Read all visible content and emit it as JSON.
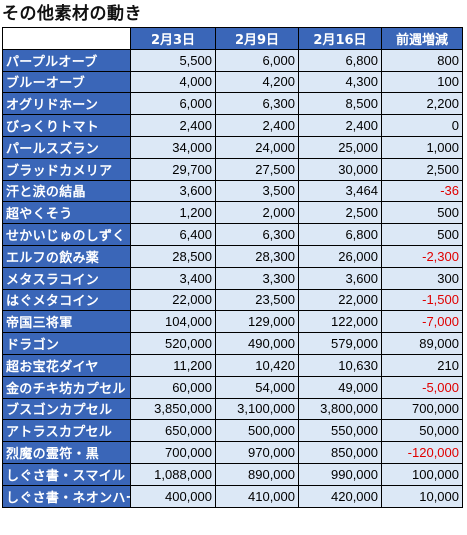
{
  "title": "その他素材の動き",
  "headers": [
    "2月3日",
    "2月9日",
    "2月16日",
    "前週増減"
  ],
  "rows": [
    {
      "name": "パープルオーブ",
      "v1": "5,500",
      "v2": "6,000",
      "v3": "6,800",
      "diff": "800"
    },
    {
      "name": "ブルーオーブ",
      "v1": "4,000",
      "v2": "4,200",
      "v3": "4,300",
      "diff": "100"
    },
    {
      "name": "オグリドホーン",
      "v1": "6,000",
      "v2": "6,300",
      "v3": "8,500",
      "diff": "2,200"
    },
    {
      "name": "びっくりトマト",
      "v1": "2,400",
      "v2": "2,400",
      "v3": "2,400",
      "diff": "0"
    },
    {
      "name": "パールスズラン",
      "v1": "34,000",
      "v2": "24,000",
      "v3": "25,000",
      "diff": "1,000"
    },
    {
      "name": "ブラッドカメリア",
      "v1": "29,700",
      "v2": "27,500",
      "v3": "30,000",
      "diff": "2,500"
    },
    {
      "name": "汗と涙の結晶",
      "v1": "3,600",
      "v2": "3,500",
      "v3": "3,464",
      "diff": "-36"
    },
    {
      "name": "超やくそう",
      "v1": "1,200",
      "v2": "2,000",
      "v3": "2,500",
      "diff": "500"
    },
    {
      "name": "せかいじゅのしずく",
      "v1": "6,400",
      "v2": "6,300",
      "v3": "6,800",
      "diff": "500"
    },
    {
      "name": "エルフの飲み薬",
      "v1": "28,500",
      "v2": "28,300",
      "v3": "26,000",
      "diff": "-2,300"
    },
    {
      "name": "メタスラコイン",
      "v1": "3,400",
      "v2": "3,300",
      "v3": "3,600",
      "diff": "300"
    },
    {
      "name": "はぐメタコイン",
      "v1": "22,000",
      "v2": "23,500",
      "v3": "22,000",
      "diff": "-1,500"
    },
    {
      "name": "帝国三将軍",
      "v1": "104,000",
      "v2": "129,000",
      "v3": "122,000",
      "diff": "-7,000"
    },
    {
      "name": "ドラゴン",
      "v1": "520,000",
      "v2": "490,000",
      "v3": "579,000",
      "diff": "89,000"
    },
    {
      "name": "超お宝花ダイヤ",
      "v1": "11,200",
      "v2": "10,420",
      "v3": "10,630",
      "diff": "210"
    },
    {
      "name": "金のチキ坊カプセル",
      "v1": "60,000",
      "v2": "54,000",
      "v3": "49,000",
      "diff": "-5,000"
    },
    {
      "name": "ブスゴンカプセル",
      "v1": "3,850,000",
      "v2": "3,100,000",
      "v3": "3,800,000",
      "diff": "700,000"
    },
    {
      "name": "アトラスカプセル",
      "v1": "650,000",
      "v2": "500,000",
      "v3": "550,000",
      "diff": "50,000"
    },
    {
      "name": "烈魔の霊符・黒",
      "v1": "700,000",
      "v2": "970,000",
      "v3": "850,000",
      "diff": "-120,000"
    },
    {
      "name": "しぐさ書・スマイル",
      "v1": "1,088,000",
      "v2": "890,000",
      "v3": "990,000",
      "diff": "100,000"
    },
    {
      "name": "しぐさ書・ネオンハート",
      "v1": "400,000",
      "v2": "410,000",
      "v3": "420,000",
      "diff": "10,000"
    }
  ],
  "colors": {
    "header_bg": "#3a66b8",
    "cell_bg": "#dce8f6",
    "negative": "#e00000"
  }
}
